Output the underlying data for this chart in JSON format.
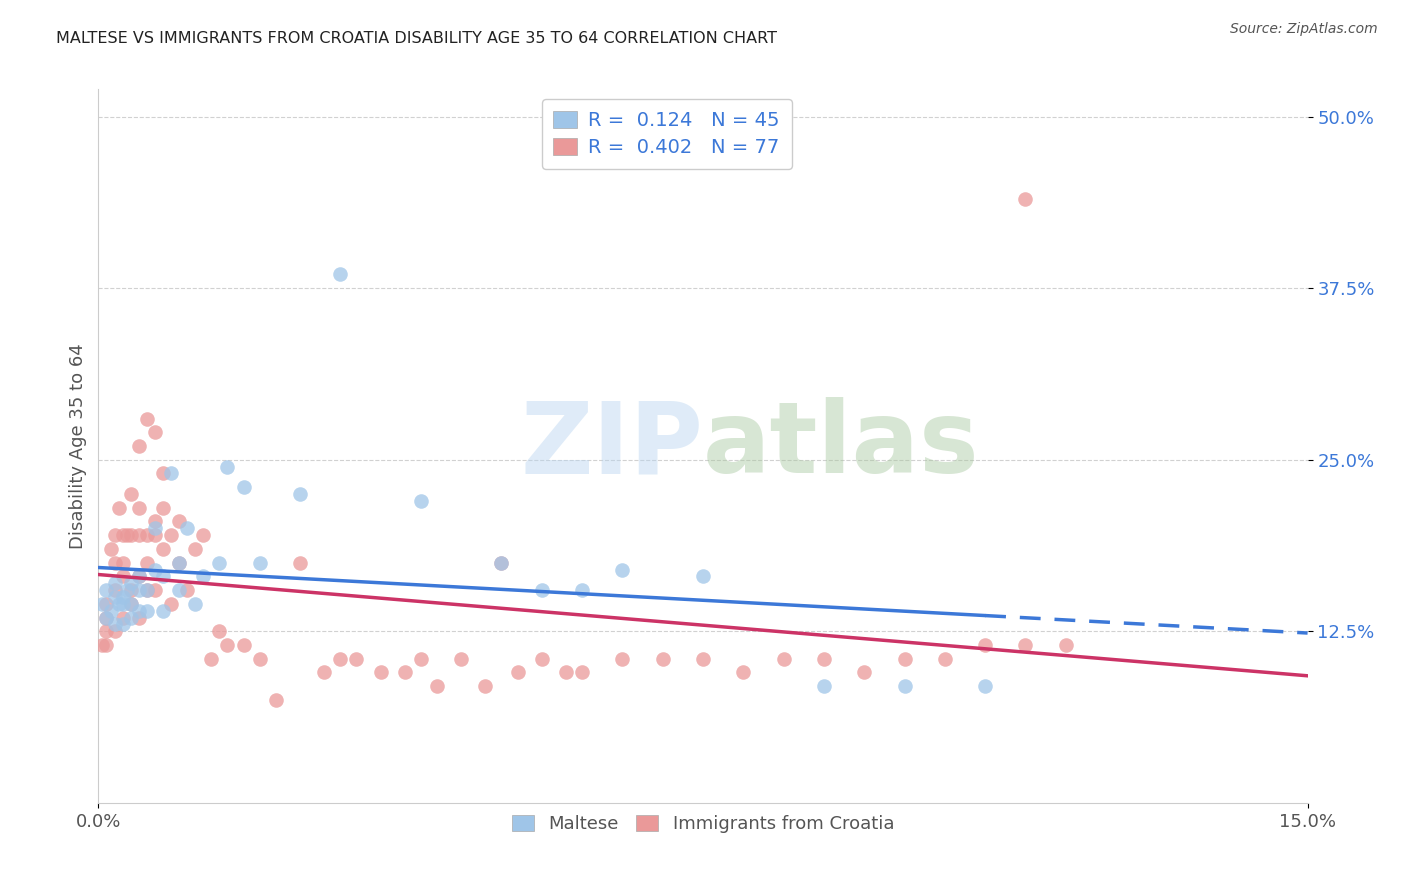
{
  "title": "MALTESE VS IMMIGRANTS FROM CROATIA DISABILITY AGE 35 TO 64 CORRELATION CHART",
  "source": "Source: ZipAtlas.com",
  "ylabel_label": "Disability Age 35 to 64",
  "xlim": [
    0.0,
    0.15
  ],
  "ylim": [
    0.0,
    0.52
  ],
  "ytick_vals": [
    0.125,
    0.25,
    0.375,
    0.5
  ],
  "ytick_labels": [
    "12.5%",
    "25.0%",
    "37.5%",
    "50.0%"
  ],
  "xtick_vals": [
    0.0,
    0.15
  ],
  "xtick_labels": [
    "0.0%",
    "15.0%"
  ],
  "legend1_r": "0.124",
  "legend1_n": "45",
  "legend2_r": "0.402",
  "legend2_n": "77",
  "blue_color": "#9fc5e8",
  "pink_color": "#ea9999",
  "blue_line_color": "#3c78d8",
  "pink_line_color": "#cc3366",
  "watermark_zip": "ZIP",
  "watermark_atlas": "atlas",
  "maltese_x": [
    0.0005,
    0.001,
    0.001,
    0.0015,
    0.002,
    0.002,
    0.002,
    0.0025,
    0.003,
    0.003,
    0.003,
    0.0035,
    0.004,
    0.004,
    0.004,
    0.005,
    0.005,
    0.005,
    0.006,
    0.006,
    0.007,
    0.007,
    0.008,
    0.008,
    0.009,
    0.01,
    0.01,
    0.011,
    0.012,
    0.013,
    0.015,
    0.016,
    0.018,
    0.02,
    0.025,
    0.03,
    0.04,
    0.05,
    0.055,
    0.06,
    0.065,
    0.075,
    0.09,
    0.1,
    0.11
  ],
  "maltese_y": [
    0.145,
    0.135,
    0.155,
    0.14,
    0.13,
    0.15,
    0.16,
    0.145,
    0.13,
    0.15,
    0.145,
    0.155,
    0.135,
    0.145,
    0.16,
    0.14,
    0.155,
    0.165,
    0.14,
    0.155,
    0.17,
    0.2,
    0.14,
    0.165,
    0.24,
    0.155,
    0.175,
    0.2,
    0.145,
    0.165,
    0.175,
    0.245,
    0.23,
    0.175,
    0.225,
    0.385,
    0.22,
    0.175,
    0.155,
    0.155,
    0.17,
    0.165,
    0.085,
    0.085,
    0.085
  ],
  "croatia_x": [
    0.0005,
    0.001,
    0.001,
    0.001,
    0.001,
    0.0015,
    0.002,
    0.002,
    0.002,
    0.002,
    0.0025,
    0.003,
    0.003,
    0.003,
    0.003,
    0.0035,
    0.004,
    0.004,
    0.004,
    0.004,
    0.005,
    0.005,
    0.005,
    0.005,
    0.006,
    0.006,
    0.006,
    0.007,
    0.007,
    0.007,
    0.008,
    0.008,
    0.009,
    0.009,
    0.01,
    0.01,
    0.011,
    0.012,
    0.013,
    0.014,
    0.015,
    0.016,
    0.018,
    0.02,
    0.022,
    0.025,
    0.028,
    0.03,
    0.032,
    0.035,
    0.038,
    0.04,
    0.042,
    0.045,
    0.048,
    0.05,
    0.052,
    0.055,
    0.058,
    0.06,
    0.065,
    0.07,
    0.075,
    0.08,
    0.085,
    0.09,
    0.095,
    0.1,
    0.105,
    0.11,
    0.115,
    0.12,
    0.005,
    0.006,
    0.007,
    0.008,
    0.115
  ],
  "croatia_y": [
    0.115,
    0.145,
    0.115,
    0.125,
    0.135,
    0.185,
    0.125,
    0.155,
    0.195,
    0.175,
    0.215,
    0.135,
    0.165,
    0.195,
    0.175,
    0.195,
    0.155,
    0.195,
    0.145,
    0.225,
    0.135,
    0.165,
    0.195,
    0.215,
    0.195,
    0.155,
    0.175,
    0.205,
    0.155,
    0.195,
    0.185,
    0.215,
    0.145,
    0.195,
    0.175,
    0.205,
    0.155,
    0.185,
    0.195,
    0.105,
    0.125,
    0.115,
    0.115,
    0.105,
    0.075,
    0.175,
    0.095,
    0.105,
    0.105,
    0.095,
    0.095,
    0.105,
    0.085,
    0.105,
    0.085,
    0.175,
    0.095,
    0.105,
    0.095,
    0.095,
    0.105,
    0.105,
    0.105,
    0.095,
    0.105,
    0.105,
    0.095,
    0.105,
    0.105,
    0.115,
    0.115,
    0.115,
    0.26,
    0.28,
    0.27,
    0.24,
    0.44
  ]
}
